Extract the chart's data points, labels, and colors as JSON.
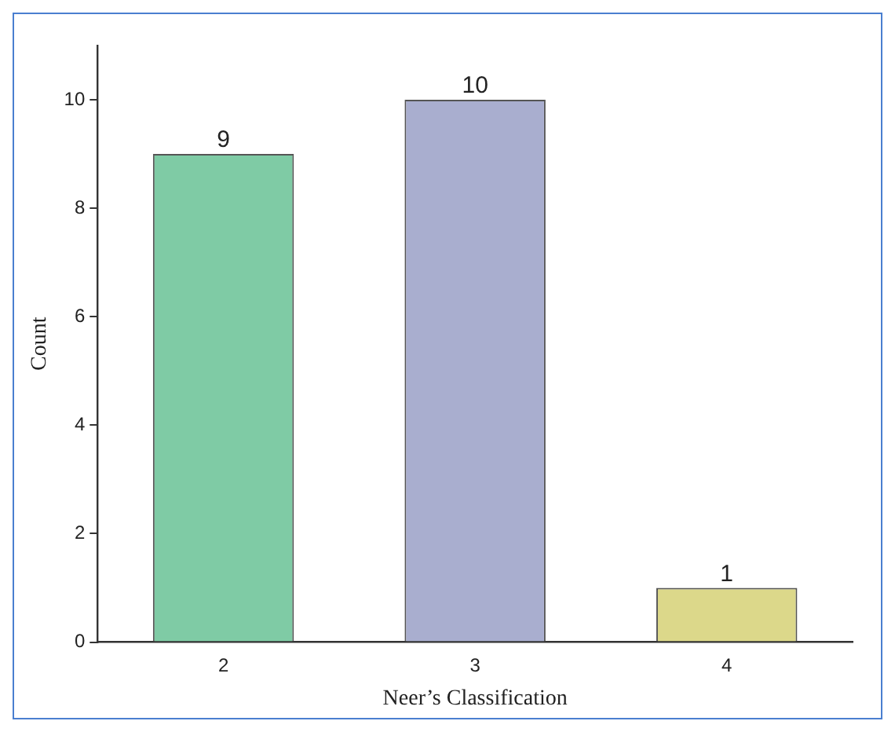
{
  "chart_data": {
    "type": "bar",
    "xlabel": "Neer’s Classification",
    "ylabel": "Count",
    "categories": [
      "2",
      "3",
      "4"
    ],
    "values": [
      9,
      10,
      1
    ],
    "colors": [
      "#7fcba5",
      "#a9aecf",
      "#dcd88a"
    ],
    "ylim": [
      0,
      11
    ],
    "yticks": [
      0,
      2,
      4,
      6,
      8,
      10
    ],
    "grid": false,
    "legend": false,
    "data_labels": true
  }
}
